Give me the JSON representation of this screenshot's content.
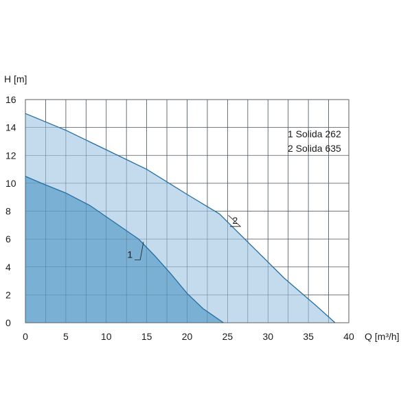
{
  "chart_data": {
    "type": "area",
    "title": "",
    "xlabel": "Q [m³/h]",
    "ylabel": "H [m]",
    "xlim": [
      0,
      40
    ],
    "ylim": [
      0,
      16
    ],
    "xticks": [
      "0",
      "5",
      "10",
      "15",
      "20",
      "25",
      "30",
      "35",
      "40"
    ],
    "yticks": [
      "0",
      "2",
      "4",
      "6",
      "8",
      "10",
      "12",
      "14",
      "16"
    ],
    "grid": true,
    "legend_position": "right",
    "legend": [
      "1 Solida 262",
      "2 Solida 635"
    ],
    "series": [
      {
        "name": "1",
        "color": "#6fa8d0",
        "line_color": "#1f6fa8",
        "x": [
          0,
          2,
          5,
          8,
          10,
          12,
          14,
          16,
          18,
          20,
          22,
          24.5
        ],
        "y": [
          10.5,
          10.0,
          9.3,
          8.4,
          7.6,
          6.8,
          6.0,
          4.8,
          3.5,
          2.1,
          1.0,
          0
        ]
      },
      {
        "name": "2",
        "color": "#b8d5ea",
        "line_color": "#1f6fa8",
        "x": [
          0,
          5,
          10,
          15,
          20,
          24,
          28,
          32,
          36,
          38.3
        ],
        "y": [
          15.0,
          13.8,
          12.4,
          11.0,
          9.2,
          7.8,
          5.5,
          3.2,
          1.2,
          0
        ]
      }
    ]
  }
}
